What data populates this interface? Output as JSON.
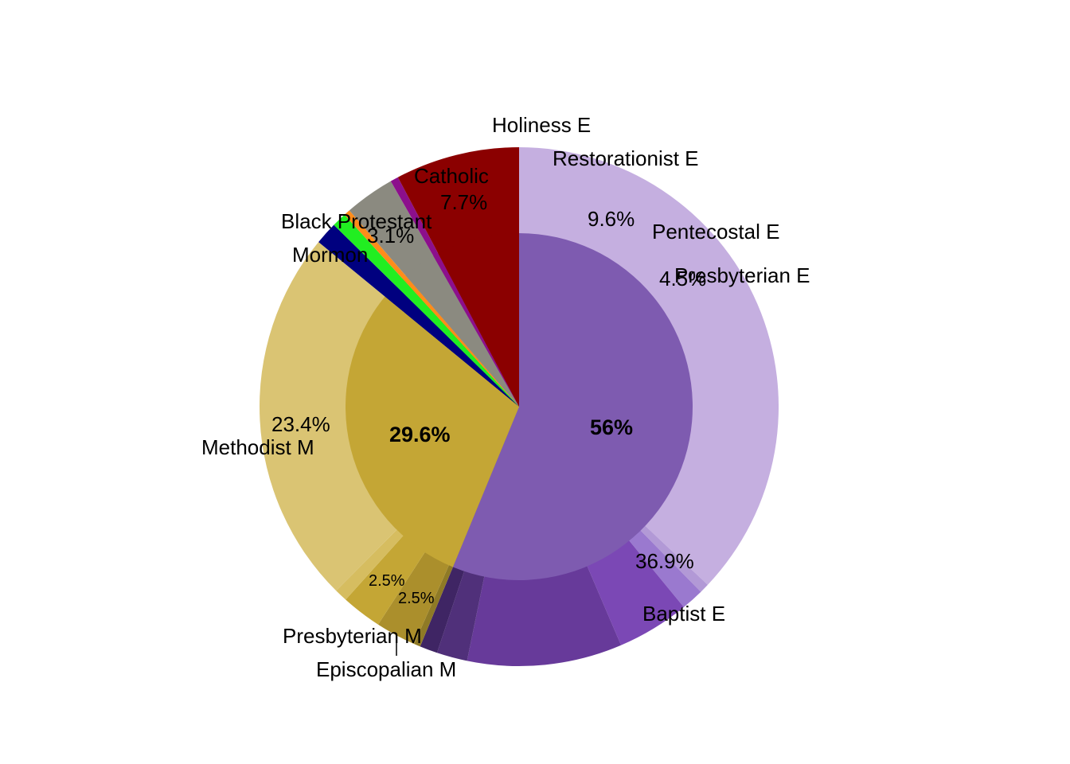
{
  "chart_data": {
    "type": "pie",
    "subtype": "nested donut (sunburst)",
    "title": "",
    "inner_ring": [
      {
        "id": "evangelical",
        "value": 56.0,
        "color": "#7e5bb0",
        "label": "56%"
      },
      {
        "id": "mainline",
        "value": 29.6,
        "color": "#c4a635",
        "label": "29.6%"
      },
      {
        "id": "black_protestant",
        "value": 1.4,
        "color": "#00007f",
        "label": ""
      },
      {
        "id": "mormon",
        "value": 0.9,
        "color": "#21ee21",
        "label": ""
      },
      {
        "id": "other_small",
        "value": 0.4,
        "color": "#ff8c1a",
        "label": ""
      },
      {
        "id": "other_gray",
        "value": 3.1,
        "color": "#8b8a80",
        "label": ""
      },
      {
        "id": "other_purple",
        "value": 0.5,
        "color": "#8c0f8c",
        "label": ""
      },
      {
        "id": "catholic",
        "value": 7.7,
        "color": "#8b0000",
        "label": ""
      }
    ],
    "outer_ring": [
      {
        "name": "Baptist E",
        "value": 36.9,
        "pct_label": "36.9%",
        "color": "#c5afe0"
      },
      {
        "name": "",
        "value": 0.6,
        "pct_label": "",
        "color": "#b299d6"
      },
      {
        "name": "Presbyterian E",
        "value": 1.4,
        "pct_label": "",
        "color": "#9a79cf"
      },
      {
        "name": "Pentecostal E",
        "value": 4.5,
        "pct_label": "4.5%",
        "color": "#7b48b5"
      },
      {
        "name": "",
        "value": 9.6,
        "pct_label": "9.6%",
        "color": "#673a9a"
      },
      {
        "name": "Restorationist E",
        "value": 1.9,
        "pct_label": "",
        "color": "#50307a"
      },
      {
        "name": "Holiness E",
        "value": 1.1,
        "pct_label": "",
        "color": "#3f2564"
      },
      {
        "name": "Episcopalian M",
        "value": 0.4,
        "pct_label": "",
        "color": "#8f7a26"
      },
      {
        "name": "",
        "value": 2.5,
        "pct_label": "2.5%",
        "color": "#ab8f2c"
      },
      {
        "name": "Presbyterian M",
        "value": 2.5,
        "pct_label": "2.5%",
        "color": "#c4a635"
      },
      {
        "name": "",
        "value": 0.8,
        "pct_label": "",
        "color": "#d6bd60"
      },
      {
        "name": "Methodist M",
        "value": 23.4,
        "pct_label": "23.4%",
        "color": "#dac473"
      },
      {
        "name": "Black Protestant",
        "value": 1.4,
        "pct_label": "",
        "color": "#00007f"
      },
      {
        "name": "Mormon",
        "value": 0.9,
        "pct_label": "",
        "color": "#21ee21"
      },
      {
        "name": "",
        "value": 0.4,
        "pct_label": "",
        "color": "#ff8c1a"
      },
      {
        "name": "",
        "value": 3.1,
        "pct_label": "3.1%",
        "color": "#8b8a80"
      },
      {
        "name": "",
        "value": 0.5,
        "pct_label": "",
        "color": "#8c0f8c"
      },
      {
        "name": "Catholic",
        "value": 7.7,
        "pct_label": "7.7%",
        "color": "#8b0000"
      }
    ]
  }
}
